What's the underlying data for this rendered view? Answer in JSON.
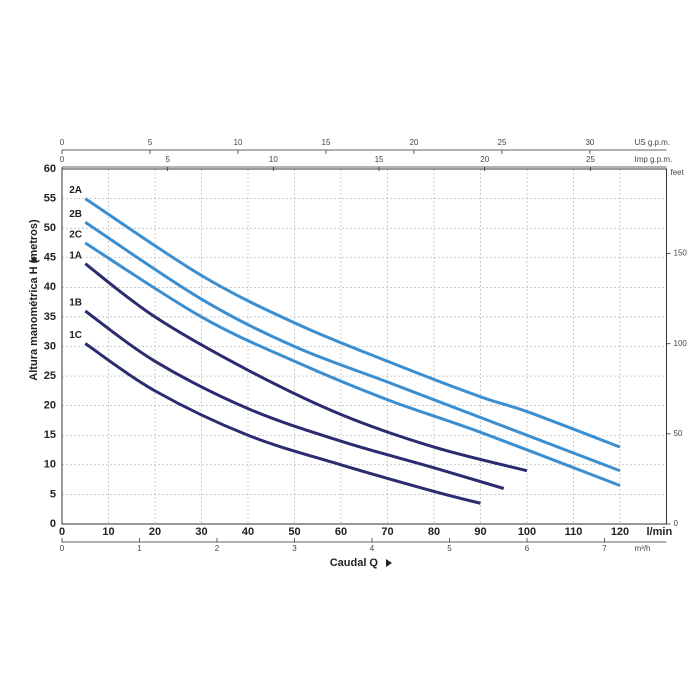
{
  "chart_data": {
    "type": "line",
    "ylabel": "Altura manométrica H (metros)",
    "xlabel": "Caudal Q",
    "xunit": "l/min",
    "xlim": [
      0,
      130
    ],
    "xticks": [
      0,
      10,
      20,
      30,
      40,
      50,
      60,
      70,
      80,
      90,
      100,
      110,
      120
    ],
    "ylim": [
      0,
      60
    ],
    "yticks": [
      0,
      5,
      10,
      15,
      20,
      25,
      30,
      35,
      40,
      45,
      50,
      55,
      60
    ],
    "grid": true,
    "us_gpm_axis": {
      "unit": "US g.p.m.",
      "lim": [
        0,
        34.35
      ],
      "ticks": [
        0,
        5,
        10,
        15,
        20,
        25,
        30
      ]
    },
    "imp_gpm_axis": {
      "unit": "Imp g.p.m.",
      "lim": [
        0,
        28.6
      ],
      "ticks": [
        0,
        5,
        10,
        15,
        20,
        25
      ]
    },
    "m3h_axis": {
      "unit": "m³/h",
      "lim": [
        0,
        7.8
      ],
      "ticks": [
        0,
        1,
        2,
        3,
        4,
        5,
        6,
        7
      ]
    },
    "feet_axis": {
      "unit": "feet",
      "lim": [
        0,
        196.9
      ],
      "ticks": [
        0,
        50,
        100,
        150
      ]
    },
    "series": [
      {
        "name": "2A",
        "color": "#3b8fd1",
        "x": [
          5,
          30,
          50,
          70,
          90,
          100,
          120
        ],
        "values": [
          55,
          42,
          34,
          27.5,
          21.5,
          19,
          13
        ]
      },
      {
        "name": "2B",
        "color": "#3b8fd1",
        "x": [
          5,
          30,
          50,
          70,
          90,
          120
        ],
        "values": [
          51,
          38,
          30,
          24,
          18,
          9
        ]
      },
      {
        "name": "2C",
        "color": "#3b8fd1",
        "x": [
          5,
          30,
          50,
          70,
          90,
          120
        ],
        "values": [
          47.5,
          35,
          27.5,
          21,
          15.5,
          6.5
        ]
      },
      {
        "name": "1A",
        "color": "#2b2b70",
        "x": [
          5,
          20,
          40,
          60,
          80,
          100
        ],
        "values": [
          44,
          35,
          26,
          18.5,
          13,
          9
        ]
      },
      {
        "name": "1B",
        "color": "#2b2b70",
        "x": [
          5,
          20,
          40,
          60,
          80,
          95
        ],
        "values": [
          36,
          27.5,
          19.5,
          14,
          9.5,
          6
        ]
      },
      {
        "name": "1C",
        "color": "#2b2b70",
        "x": [
          5,
          20,
          40,
          60,
          80,
          90
        ],
        "values": [
          30.5,
          22.5,
          15,
          10,
          5.5,
          3.5
        ]
      }
    ]
  }
}
